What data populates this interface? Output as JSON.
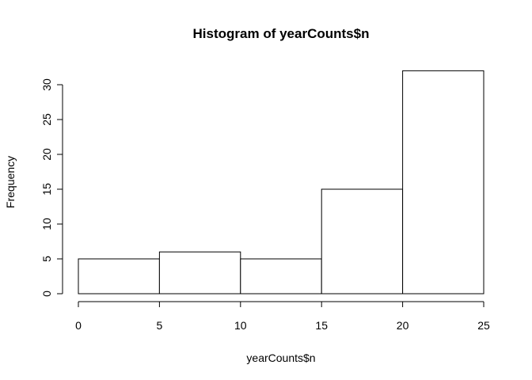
{
  "chart_data": {
    "type": "bar",
    "title": "Histogram of yearCounts$n",
    "xlabel": "yearCounts$n",
    "ylabel": "Frequency",
    "bins": [
      {
        "start": 0,
        "end": 5,
        "count": 5
      },
      {
        "start": 5,
        "end": 10,
        "count": 6
      },
      {
        "start": 10,
        "end": 15,
        "count": 5
      },
      {
        "start": 15,
        "end": 20,
        "count": 15
      },
      {
        "start": 20,
        "end": 25,
        "count": 32
      }
    ],
    "xticks": [
      0,
      5,
      10,
      15,
      20,
      25
    ],
    "yticks": [
      0,
      5,
      10,
      15,
      20,
      25,
      30
    ],
    "xlim": [
      0,
      25
    ],
    "ylim": [
      0,
      32
    ],
    "grid": false,
    "bar_fill": "#ffffff",
    "bar_stroke": "#000000"
  }
}
